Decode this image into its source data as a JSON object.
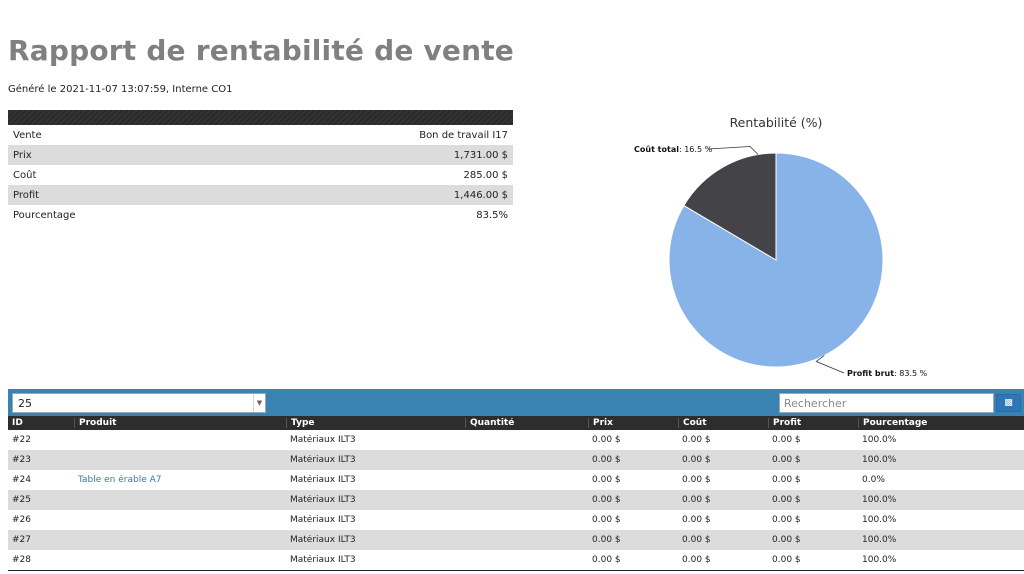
{
  "report": {
    "title": "Rapport de rentabilité de vente",
    "generated": "Généré le 2021-11-07 13:07:59, Interne CO1"
  },
  "summary": {
    "rows": [
      {
        "label": "Vente",
        "value": "Bon de travail I17"
      },
      {
        "label": "Prix",
        "value": "1,731.00 $"
      },
      {
        "label": "Coût",
        "value": "285.00 $"
      },
      {
        "label": "Profit",
        "value": "1,446.00 $"
      },
      {
        "label": "Pourcentage",
        "value": "83.5%"
      }
    ]
  },
  "chart_data": {
    "type": "pie",
    "title": "Rentabilité (%)",
    "slices": [
      {
        "name": "Profit brut",
        "value": 83.5,
        "label": "83.5 %",
        "color": "#87b3e8"
      },
      {
        "name": "Coût total",
        "value": 16.5,
        "label": "16.5 %",
        "color": "#434348"
      }
    ]
  },
  "table": {
    "page_size": "25",
    "search_placeholder": "Rechercher",
    "export_icon": "document-icon",
    "columns": [
      "ID",
      "Produit",
      "Type",
      "Quantité",
      "Prix",
      "Coût",
      "Profit",
      "Pourcentage"
    ],
    "rows": [
      {
        "id": "#22",
        "produit": "",
        "type": "Matériaux ILT3",
        "quantite": "",
        "prix": "0.00 $",
        "cout": "0.00 $",
        "profit": "0.00 $",
        "pct": "100.0%"
      },
      {
        "id": "#23",
        "produit": "",
        "type": "Matériaux ILT3",
        "quantite": "",
        "prix": "0.00 $",
        "cout": "0.00 $",
        "profit": "0.00 $",
        "pct": "100.0%"
      },
      {
        "id": "#24",
        "produit": "Table en érable A7",
        "type": "Matériaux ILT3",
        "quantite": "",
        "prix": "0.00 $",
        "cout": "0.00 $",
        "profit": "0.00 $",
        "pct": "0.0%"
      },
      {
        "id": "#25",
        "produit": "",
        "type": "Matériaux ILT3",
        "quantite": "",
        "prix": "0.00 $",
        "cout": "0.00 $",
        "profit": "0.00 $",
        "pct": "100.0%"
      },
      {
        "id": "#26",
        "produit": "",
        "type": "Matériaux ILT3",
        "quantite": "",
        "prix": "0.00 $",
        "cout": "0.00 $",
        "profit": "0.00 $",
        "pct": "100.0%"
      },
      {
        "id": "#27",
        "produit": "",
        "type": "Matériaux ILT3",
        "quantite": "",
        "prix": "0.00 $",
        "cout": "0.00 $",
        "profit": "0.00 $",
        "pct": "100.0%"
      },
      {
        "id": "#28",
        "produit": "",
        "type": "Matériaux ILT3",
        "quantite": "",
        "prix": "0.00 $",
        "cout": "0.00 $",
        "profit": "0.00 $",
        "pct": "100.0%"
      }
    ]
  }
}
